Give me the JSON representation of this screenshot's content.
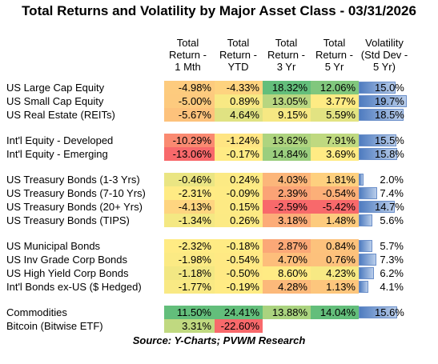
{
  "title": "Total Returns and Volatility by Major Asset Class - 03/31/2026",
  "source": "Source:  Y-Charts; PVWM Research",
  "chart_data": {
    "type": "table",
    "columns": [
      {
        "key": "m1",
        "label": "Total Return - 1 Mth",
        "lines": [
          "Total",
          "Return -",
          "1 Mth"
        ]
      },
      {
        "key": "ytd",
        "label": "Total Return - YTD",
        "lines": [
          "Total",
          "Return -",
          "YTD"
        ]
      },
      {
        "key": "y3",
        "label": "Total Return - 3 Yr",
        "lines": [
          "Total",
          "Return -",
          "3 Yr"
        ]
      },
      {
        "key": "y5",
        "label": "Total Return - 5 Yr",
        "lines": [
          "Total",
          "Return -",
          "5 Yr"
        ]
      },
      {
        "key": "vol",
        "label": "Volatility (Std Dev - 5 Yr)",
        "lines": [
          "Volatility",
          "(Std Dev -",
          "5 Yr)"
        ]
      }
    ],
    "groups": [
      {
        "rows": [
          {
            "name": "US Large Cap Equity",
            "m1": "-4.98%",
            "ytd": "-4.33%",
            "y3": "18.32%",
            "y5": "12.06%",
            "vol": "15.0%"
          },
          {
            "name": "US Small Cap Equity",
            "m1": "-5.00%",
            "ytd": "0.89%",
            "y3": "13.05%",
            "y5": "3.77%",
            "vol": "19.7%"
          },
          {
            "name": "US Real Estate (REITs)",
            "m1": "-5.67%",
            "ytd": "4.64%",
            "y3": "9.15%",
            "y5": "5.59%",
            "vol": "18.5%"
          }
        ]
      },
      {
        "rows": [
          {
            "name": "Int'l Equity - Developed",
            "m1": "-10.29%",
            "ytd": "-1.24%",
            "y3": "13.62%",
            "y5": "7.91%",
            "vol": "15.5%"
          },
          {
            "name": "Int'l Equity - Emerging",
            "m1": "-13.06%",
            "ytd": "-0.17%",
            "y3": "14.84%",
            "y5": "3.69%",
            "vol": "15.8%"
          }
        ]
      },
      {
        "rows": [
          {
            "name": "US Treasury Bonds (1-3 Yrs)",
            "m1": "-0.46%",
            "ytd": "0.24%",
            "y3": "4.03%",
            "y5": "1.81%",
            "vol": "2.0%"
          },
          {
            "name": "US Treasury Bonds (7-10 Yrs)",
            "m1": "-2.31%",
            "ytd": "-0.09%",
            "y3": "2.39%",
            "y5": "-0.54%",
            "vol": "7.4%"
          },
          {
            "name": "US Treasury Bonds (20+ Yrs)",
            "m1": "-4.13%",
            "ytd": "0.15%",
            "y3": "-2.59%",
            "y5": "-5.42%",
            "vol": "14.7%"
          },
          {
            "name": "US Treasury Bonds (TIPS)",
            "m1": "-1.34%",
            "ytd": "0.26%",
            "y3": "3.18%",
            "y5": "1.48%",
            "vol": "5.6%"
          }
        ]
      },
      {
        "rows": [
          {
            "name": "US Municipal Bonds",
            "m1": "-2.32%",
            "ytd": "-0.18%",
            "y3": "2.87%",
            "y5": "0.84%",
            "vol": "5.7%"
          },
          {
            "name": "US Inv Grade Corp Bonds",
            "m1": "-1.98%",
            "ytd": "-0.54%",
            "y3": "4.70%",
            "y5": "0.76%",
            "vol": "7.3%"
          },
          {
            "name": "US High Yield Corp Bonds",
            "m1": "-1.18%",
            "ytd": "-0.50%",
            "y3": "8.60%",
            "y5": "4.23%",
            "vol": "6.2%"
          },
          {
            "name": "Int'l Bonds ex-US ($ Hedged)",
            "m1": "-1.77%",
            "ytd": "-0.19%",
            "y3": "4.28%",
            "y5": "1.13%",
            "vol": "4.1%"
          }
        ]
      },
      {
        "rows": [
          {
            "name": "Commodities",
            "m1": "11.50%",
            "ytd": "24.41%",
            "y3": "13.88%",
            "y5": "14.04%",
            "vol": "15.6%"
          },
          {
            "name": "Bitcoin (Bitwise ETF)",
            "m1": "3.31%",
            "ytd": "-22.60%",
            "y3": "",
            "y5": "",
            "vol": ""
          }
        ]
      }
    ]
  }
}
